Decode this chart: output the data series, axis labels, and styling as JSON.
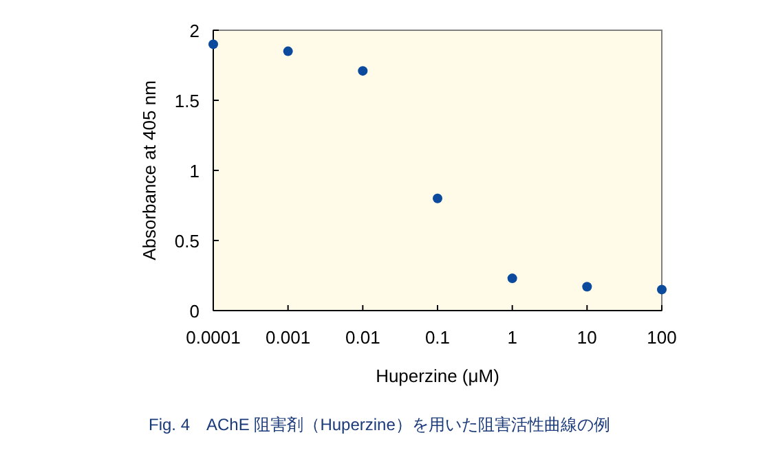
{
  "chart_data": {
    "type": "scatter",
    "xlabel": "Huperzine (μM)",
    "ylabel": "Absorbance at 405 nm",
    "log": "x",
    "x": [
      0.0001,
      0.001,
      0.01,
      0.1,
      1,
      10,
      100
    ],
    "series": [
      {
        "color": "#0b4a9c",
        "values": [
          1.9,
          1.85,
          1.71,
          0.8,
          0.23,
          0.17,
          0.15
        ]
      }
    ],
    "xlim": [
      0.0001,
      100
    ],
    "xticks": [
      0.0001,
      0.001,
      0.01,
      0.1,
      1,
      10,
      100
    ],
    "ylim": [
      0,
      2
    ],
    "yticks": [
      0,
      0.5,
      1,
      1.5,
      2
    ],
    "marker": "circle",
    "grid": false,
    "annotations": [
      "Fig. 4　AChE 阻害剤（Huperzine）を用いた阻害活性曲線の例"
    ]
  }
}
